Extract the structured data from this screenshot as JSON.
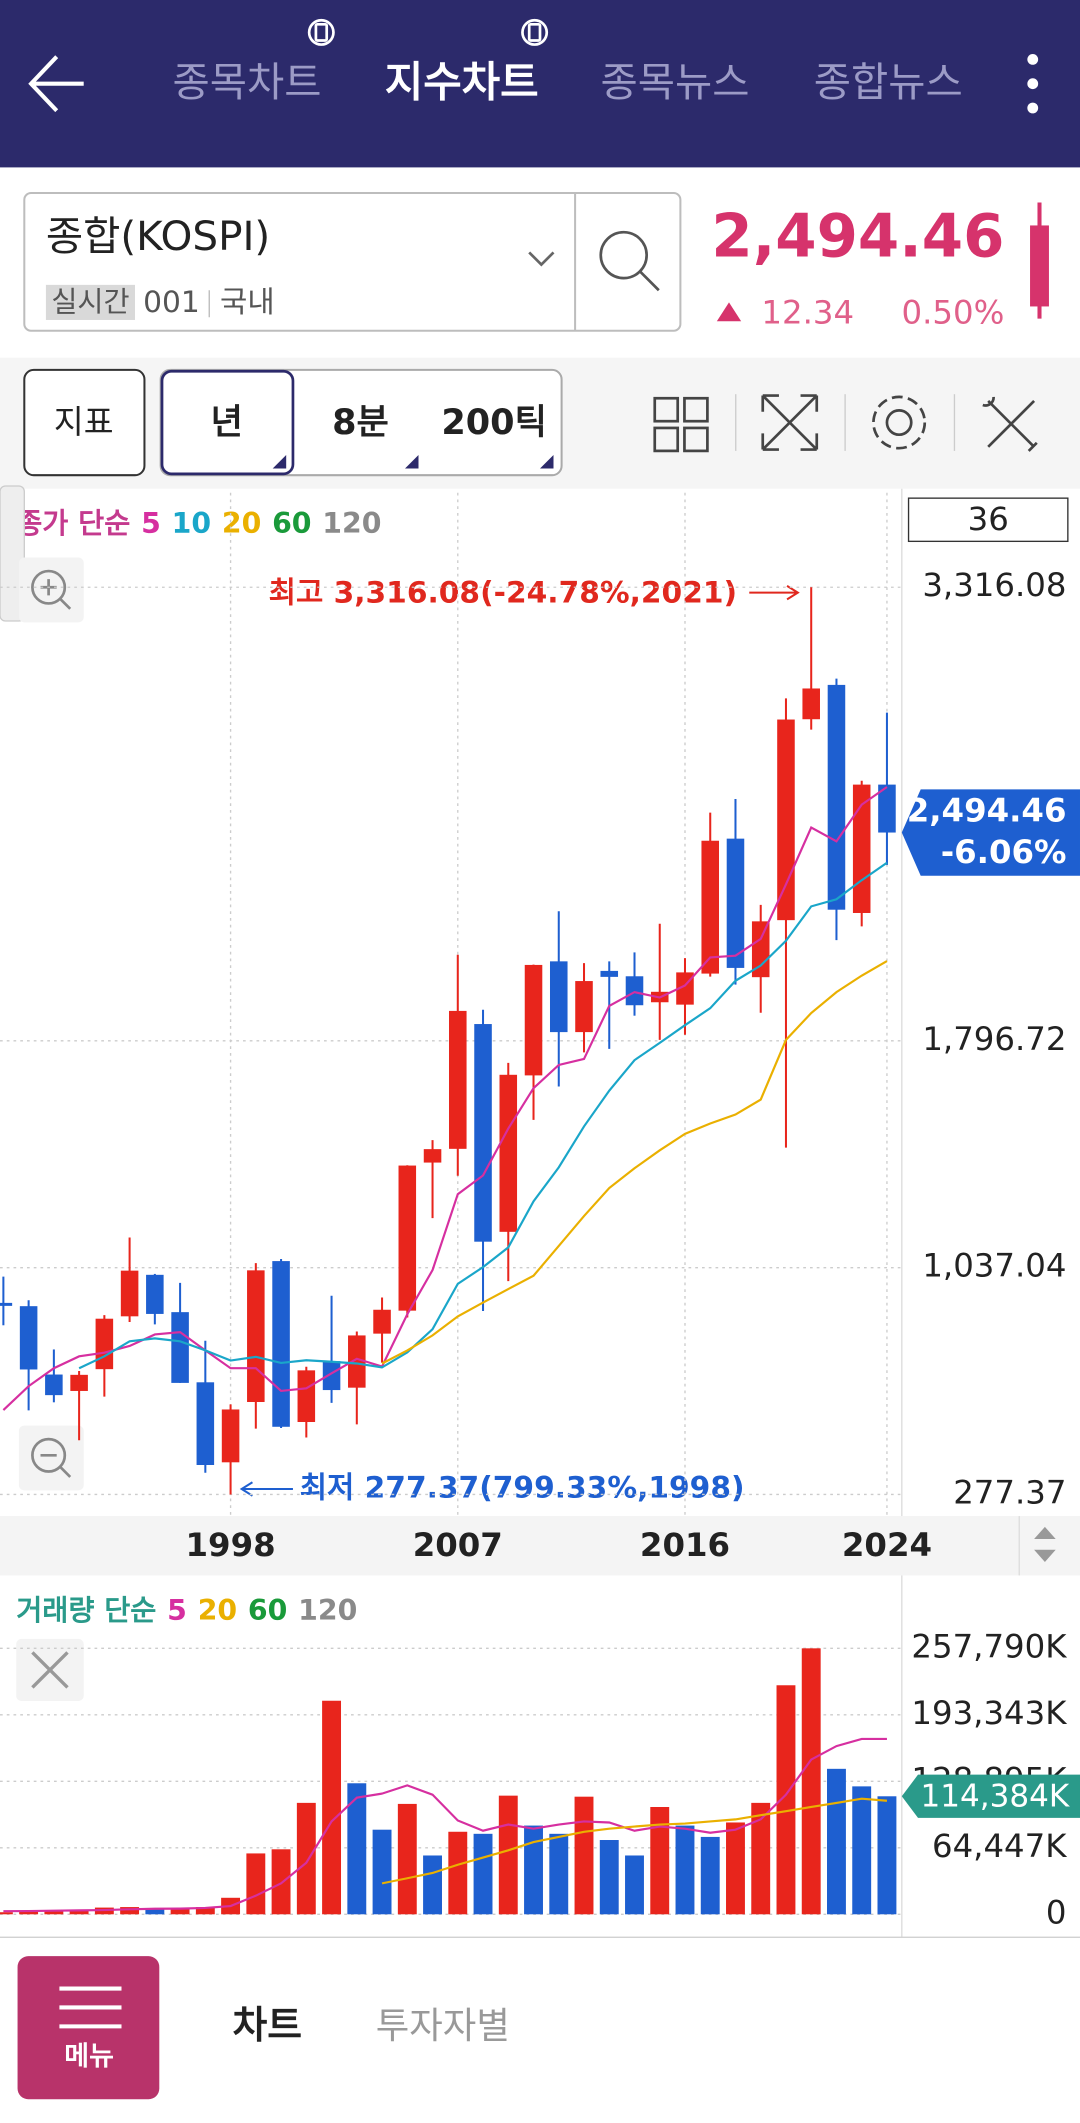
{
  "header": {
    "tabs": [
      "종목차트",
      "지수차트",
      "종목뉴스",
      "종합뉴스"
    ]
  },
  "quote": {
    "name": "종합(KOSPI)",
    "mode": "실시간",
    "code": "001",
    "market": "국내",
    "price": "2,494.46",
    "change": "12.34",
    "change_pct": "0.50%"
  },
  "toolbar": {
    "indicator": "지표",
    "periods": [
      "년",
      "8분",
      "200틱"
    ]
  },
  "chart_data": [
    {
      "type": "candlestick",
      "legend_title": "종가 단순",
      "categories": [
        null,
        null,
        null,
        null,
        null,
        null,
        null,
        null,
        null,
        "1998",
        null,
        null,
        null,
        null,
        null,
        null,
        null,
        null,
        "2007",
        null,
        null,
        null,
        null,
        null,
        null,
        null,
        null,
        "2016",
        null,
        null,
        null,
        null,
        null,
        null,
        null,
        "2024"
      ],
      "open": [
        919,
        908,
        679,
        624,
        697,
        874,
        1013,
        888,
        653,
        385,
        587,
        1059,
        520,
        724,
        635,
        816,
        893,
        1389,
        1435,
        1853,
        1157,
        1681,
        2063,
        1826,
        2031,
        2013,
        1926,
        1918,
        2022,
        2474,
        2010,
        2201,
        2874,
        2989,
        2225,
        2655
      ],
      "high": [
        1007,
        928,
        763,
        691,
        878,
        1138,
        1016,
        986,
        792,
        579,
        1052,
        1066,
        705,
        943,
        823,
        937,
        1380,
        1464,
        2085,
        1901,
        1723,
        2052,
        2231,
        2057,
        2063,
        2093,
        2189,
        2074,
        2561,
        2607,
        2252,
        2944,
        3316.08,
        3010,
        2668,
        2896
      ],
      "low": [
        844,
        559,
        586,
        459,
        605,
        855,
        847,
        651,
        350,
        277.37,
        498,
        500,
        468,
        584,
        512,
        719,
        870,
        1203,
        1345,
        892,
        992,
        1532,
        1644,
        1758,
        1770,
        1881,
        1800,
        1817,
        2012,
        1985,
        1891,
        1439,
        2839,
        2134,
        2180,
        2386
      ],
      "close": [
        909,
        696,
        610,
        678,
        866,
        1027,
        882,
        651,
        376,
        562,
        1028,
        504,
        693,
        627,
        810,
        896,
        1379,
        1434,
        1897,
        1124,
        1683,
        2051,
        1826,
        1997,
        2011,
        1916,
        1961,
        2026,
        2467,
        2041,
        2197,
        2873,
        2977,
        2236,
        2655,
        2494.46
      ],
      "up_color": "#e8251c",
      "down_color": "#1e5fd0",
      "series": [
        {
          "name": "5",
          "color": "#d62fa0",
          "values": [
            560,
            640,
            700,
            740,
            752,
            775,
            813,
            821,
            760,
            700,
            700,
            624,
            633,
            683,
            732,
            706,
            881,
            1029,
            1283,
            1346,
            1503,
            1638,
            1716,
            1736,
            1914,
            1960,
            1942,
            1982,
            2076,
            2082,
            2138,
            2321,
            2511,
            2465,
            2588,
            2647
          ]
        },
        {
          "name": "10",
          "color": "#1aa6c9",
          "values": [
            null,
            null,
            null,
            700,
            740,
            790,
            800,
            790,
            760,
            726,
            738,
            718,
            727,
            722,
            716,
            703,
            753,
            831,
            983,
            1039,
            1105,
            1259,
            1373,
            1510,
            1630,
            1732,
            1790,
            1849,
            1906,
            1998,
            2049,
            2132,
            2247,
            2271,
            2335,
            2393
          ]
        },
        {
          "name": "20",
          "color": "#eab000",
          "values": [
            null,
            null,
            null,
            null,
            null,
            null,
            null,
            null,
            null,
            null,
            null,
            null,
            null,
            null,
            null,
            716,
            760,
            810,
            874,
            920,
            965,
            1010,
            1110,
            1210,
            1304,
            1370,
            1430,
            1485,
            1520,
            1550,
            1600,
            1800,
            1890,
            1960,
            2015,
            2064
          ]
        },
        {
          "name": "60",
          "color": "#1a9a3a",
          "values": [
            null,
            null,
            null,
            null,
            null,
            null,
            null,
            null,
            null,
            null,
            null,
            null,
            null,
            null,
            null,
            null,
            null,
            null,
            null,
            null,
            null,
            null,
            null,
            null,
            null,
            null,
            null,
            null,
            null,
            null,
            null,
            null,
            null,
            null,
            null,
            null
          ]
        },
        {
          "name": "120",
          "color": "#8a8a8a",
          "values": [
            null,
            null,
            null,
            null,
            null,
            null,
            null,
            null,
            null,
            null,
            null,
            null,
            null,
            null,
            null,
            null,
            null,
            null,
            null,
            null,
            null,
            null,
            null,
            null,
            null,
            null,
            null,
            null,
            null,
            null,
            null,
            null,
            null,
            null,
            null,
            null
          ]
        }
      ],
      "ylim": [
        277.37,
        3316.08
      ],
      "yticks": [
        277.37,
        {
          "value": 1037.04,
          "label": "1,037.04"
        },
        {
          "value": 1796.72,
          "label": "1,796.72"
        },
        {
          "value": 3316.08,
          "label": "3,316.08"
        }
      ],
      "grid": true,
      "annotations": [
        "최고 3,316.08(-24.78%,2021)",
        "최저 277.37(799.33%,1998)"
      ],
      "last_price_label": "2,494.46",
      "last_change_label": "-6.06%",
      "period_count": "36"
    },
    {
      "type": "bar",
      "legend_title": "거래량 단순",
      "values": [
        2000,
        2500,
        3500,
        4500,
        6500,
        7000,
        5500,
        5000,
        7000,
        16000,
        59000,
        63000,
        108000,
        207000,
        127000,
        82000,
        107000,
        57000,
        80000,
        78000,
        115000,
        86000,
        78000,
        114000,
        72000,
        57000,
        104000,
        86000,
        75000,
        89000,
        108000,
        222000,
        257790,
        141000,
        124000,
        114384
      ],
      "colors": [
        "#e8251c",
        "#e8251c",
        "#e8251c",
        "#e8251c",
        "#e8251c",
        "#e8251c",
        "#1e5fd0",
        "#e8251c",
        "#e8251c",
        "#e8251c",
        "#e8251c",
        "#e8251c",
        "#e8251c",
        "#e8251c",
        "#1e5fd0",
        "#1e5fd0",
        "#e8251c",
        "#1e5fd0",
        "#e8251c",
        "#1e5fd0",
        "#e8251c",
        "#1e5fd0",
        "#1e5fd0",
        "#e8251c",
        "#1e5fd0",
        "#1e5fd0",
        "#e8251c",
        "#1e5fd0",
        "#1e5fd0",
        "#e8251c",
        "#e8251c",
        "#e8251c",
        "#e8251c",
        "#1e5fd0",
        "#1e5fd0",
        "#1e5fd0"
      ],
      "series": [
        {
          "name": "5",
          "color": "#d62fa0",
          "values": [
            3000,
            3200,
            3500,
            3800,
            4000,
            4800,
            5400,
            5500,
            6200,
            8000,
            18000,
            30000,
            50000,
            90000,
            113000,
            117000,
            125000,
            116000,
            91000,
            81000,
            87000,
            83000,
            87000,
            90000,
            89000,
            81000,
            85000,
            83000,
            79000,
            82000,
            92000,
            116000,
            150000,
            163000,
            170000,
            170000
          ]
        },
        {
          "name": "20",
          "color": "#eab000",
          "values": [
            null,
            null,
            null,
            null,
            null,
            null,
            null,
            null,
            null,
            null,
            null,
            null,
            null,
            null,
            null,
            30000,
            35000,
            40000,
            48000,
            55000,
            62000,
            70000,
            75000,
            80000,
            83000,
            85000,
            87000,
            88000,
            90000,
            92000,
            96000,
            100000,
            104000,
            108000,
            112000,
            110000
          ]
        },
        {
          "name": "60",
          "color": "#1a9a3a",
          "values": [
            null,
            null,
            null,
            null,
            null,
            null,
            null,
            null,
            null,
            null,
            null,
            null,
            null,
            null,
            null,
            null,
            null,
            null,
            null,
            null,
            null,
            null,
            null,
            null,
            null,
            null,
            null,
            null,
            null,
            null,
            null,
            null,
            null,
            null,
            null,
            null
          ]
        },
        {
          "name": "120",
          "color": "#8a8a8a",
          "values": [
            null,
            null,
            null,
            null,
            null,
            null,
            null,
            null,
            null,
            null,
            null,
            null,
            null,
            null,
            null,
            null,
            null,
            null,
            null,
            null,
            null,
            null,
            null,
            null,
            null,
            null,
            null,
            null,
            null,
            null,
            null,
            null,
            null,
            null,
            null,
            null
          ]
        }
      ],
      "ylim": [
        0,
        257790
      ],
      "yticks": [
        0,
        {
          "value": 64447,
          "label": "64,447K"
        },
        {
          "value": 128895,
          "label": "128,895K"
        },
        {
          "value": 193343,
          "label": "193,343K"
        },
        {
          "value": 257790,
          "label": "257,790K"
        }
      ],
      "grid": true,
      "last_value_label": "114,384K"
    }
  ],
  "bottom_nav": {
    "menu": "메뉴",
    "tabs": [
      "차트",
      "투자자별"
    ]
  }
}
